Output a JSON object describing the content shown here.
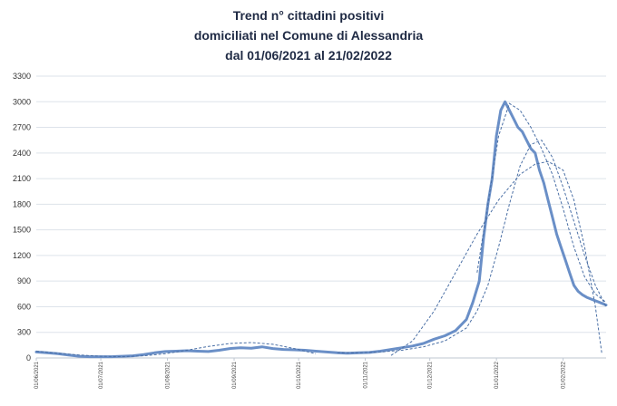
{
  "chart_data": {
    "type": "line",
    "title_lines": [
      "Trend n° cittadini positivi",
      "domiciliati nel Comune di Alessandria",
      "dal 01/06/2021 al 21/02/2022"
    ],
    "xlabel": "",
    "ylabel": "",
    "ylim": [
      0,
      3300
    ],
    "yticks": [
      0,
      300,
      600,
      900,
      1200,
      1500,
      1800,
      2100,
      2400,
      2700,
      3000,
      3300
    ],
    "xlim": [
      0,
      265
    ],
    "x_tick_labels": [
      "01/06/2021",
      "01/07/2021",
      "01/08/2021",
      "01/09/2021",
      "01/10/2021",
      "01/11/2021",
      "01/12/2021",
      "01/01/2022",
      "01/02/2022"
    ],
    "x_tick_days": [
      0,
      30,
      61,
      92,
      122,
      153,
      183,
      214,
      245
    ],
    "grid": true,
    "legend": "none",
    "colors": {
      "main_series": "#6a8fc7",
      "trend_lines": "#4a6fa5",
      "grid": "#dde3ea"
    },
    "series": [
      {
        "style": "solid",
        "x": [
          0,
          5,
          10,
          15,
          20,
          25,
          30,
          35,
          40,
          45,
          50,
          55,
          60,
          65,
          70,
          75,
          80,
          85,
          90,
          95,
          100,
          105,
          110,
          115,
          120,
          125,
          130,
          135,
          140,
          145,
          150,
          155,
          160,
          165,
          170,
          175,
          180,
          185,
          190,
          195,
          200,
          203,
          206,
          208,
          210,
          212,
          214,
          216,
          218,
          220,
          222,
          224,
          226,
          228,
          230,
          232,
          234,
          236,
          238,
          240,
          242,
          244,
          246,
          248,
          250,
          252,
          254,
          256,
          258,
          260,
          262,
          265
        ],
        "values": [
          70,
          60,
          50,
          35,
          20,
          15,
          15,
          15,
          20,
          25,
          40,
          60,
          75,
          80,
          85,
          80,
          75,
          90,
          110,
          120,
          115,
          130,
          110,
          100,
          95,
          90,
          80,
          70,
          60,
          55,
          60,
          65,
          80,
          100,
          120,
          140,
          170,
          220,
          260,
          320,
          450,
          650,
          900,
          1400,
          1800,
          2100,
          2600,
          2900,
          3000,
          2900,
          2800,
          2700,
          2650,
          2550,
          2450,
          2400,
          2200,
          2050,
          1850,
          1650,
          1450,
          1300,
          1150,
          1000,
          850,
          780,
          740,
          710,
          690,
          670,
          650,
          620
        ]
      },
      {
        "style": "dashed",
        "x": [
          0,
          10,
          20,
          30,
          40,
          50,
          60,
          70,
          80,
          90,
          100,
          110,
          120,
          125,
          130
        ],
        "values": [
          80,
          55,
          35,
          20,
          15,
          25,
          50,
          90,
          135,
          170,
          180,
          160,
          110,
          80,
          50
        ]
      },
      {
        "style": "dashed",
        "x": [
          140,
          150,
          160,
          170,
          180,
          190,
          200,
          205,
          210,
          215,
          220,
          225,
          230,
          235,
          240,
          245,
          250,
          255,
          260,
          265
        ],
        "values": [
          60,
          60,
          70,
          90,
          130,
          200,
          350,
          550,
          850,
          1300,
          1800,
          2250,
          2500,
          2550,
          2350,
          2000,
          1600,
          1200,
          850,
          600
        ]
      },
      {
        "style": "dashed",
        "x": [
          165,
          175,
          185,
          195,
          205,
          215,
          225,
          232,
          238,
          245,
          250,
          255,
          260,
          263
        ],
        "values": [
          30,
          200,
          550,
          1000,
          1450,
          1850,
          2150,
          2270,
          2300,
          2200,
          1850,
          1300,
          600,
          50
        ]
      },
      {
        "style": "dashed",
        "x": [
          205,
          210,
          215,
          220,
          225,
          230,
          235,
          240,
          245,
          250,
          255,
          260,
          265
        ],
        "values": [
          1000,
          1800,
          2600,
          2980,
          2900,
          2700,
          2450,
          2150,
          1750,
          1300,
          950,
          750,
          650
        ]
      }
    ]
  }
}
